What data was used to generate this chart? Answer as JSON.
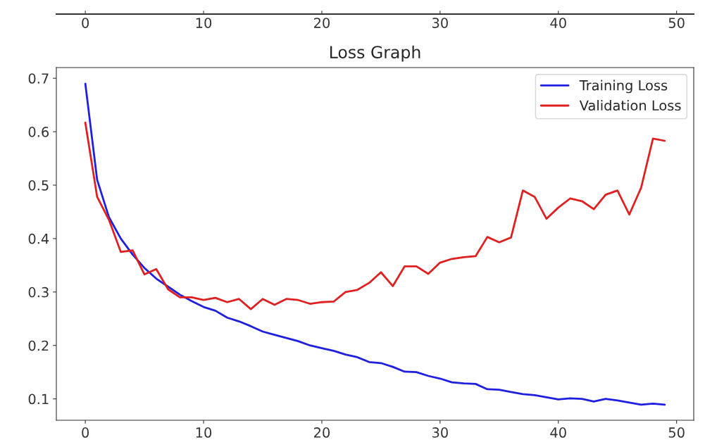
{
  "chart_data": {
    "type": "line",
    "title": "Loss Graph",
    "x": [
      0,
      1,
      2,
      3,
      4,
      5,
      6,
      7,
      8,
      9,
      10,
      11,
      12,
      13,
      14,
      15,
      16,
      17,
      18,
      19,
      20,
      21,
      22,
      23,
      24,
      25,
      26,
      27,
      28,
      29,
      30,
      31,
      32,
      33,
      34,
      35,
      36,
      37,
      38,
      39,
      40,
      41,
      42,
      43,
      44,
      45,
      46,
      47,
      48,
      49
    ],
    "series": [
      {
        "name": "Training Loss",
        "color": "#1f1fe0",
        "values": [
          0.69,
          0.51,
          0.44,
          0.4,
          0.37,
          0.345,
          0.325,
          0.31,
          0.295,
          0.283,
          0.272,
          0.265,
          0.252,
          0.245,
          0.236,
          0.226,
          0.22,
          0.214,
          0.208,
          0.2,
          0.195,
          0.19,
          0.183,
          0.178,
          0.169,
          0.167,
          0.16,
          0.151,
          0.15,
          0.143,
          0.138,
          0.131,
          0.129,
          0.128,
          0.118,
          0.117,
          0.113,
          0.109,
          0.107,
          0.103,
          0.099,
          0.101,
          0.1,
          0.095,
          0.1,
          0.097,
          0.093,
          0.089,
          0.091,
          0.089
        ]
      },
      {
        "name": "Validation Loss",
        "color": "#e02020",
        "values": [
          0.617,
          0.478,
          0.435,
          0.375,
          0.378,
          0.333,
          0.343,
          0.305,
          0.29,
          0.29,
          0.285,
          0.289,
          0.281,
          0.287,
          0.268,
          0.287,
          0.276,
          0.287,
          0.285,
          0.278,
          0.281,
          0.282,
          0.3,
          0.304,
          0.317,
          0.337,
          0.311,
          0.348,
          0.348,
          0.334,
          0.355,
          0.362,
          0.365,
          0.367,
          0.403,
          0.393,
          0.402,
          0.49,
          0.478,
          0.437,
          0.458,
          0.475,
          0.47,
          0.455,
          0.482,
          0.49,
          0.445,
          0.495,
          0.587,
          0.583
        ]
      }
    ],
    "xlim": [
      -2.45,
      51.45
    ],
    "xticks": [
      0,
      10,
      20,
      30,
      40,
      50
    ],
    "ylim": [
      0.06,
      0.72
    ],
    "yticks": [
      0.1,
      0.2,
      0.3,
      0.4,
      0.5,
      0.6,
      0.7
    ],
    "x2lim": [
      -2.45,
      51.45
    ],
    "x2ticks": [
      0,
      10,
      20,
      30,
      40,
      50
    ],
    "legend": "top right",
    "grid": false,
    "line_style": "solid",
    "marker": "none"
  }
}
